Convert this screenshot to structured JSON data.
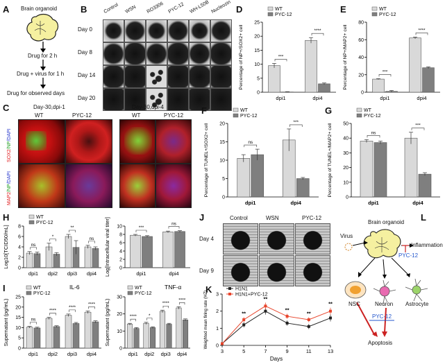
{
  "panelA": {
    "letter": "A",
    "title": "Brain organoid",
    "steps": [
      "Drug for 2 h",
      "Drug + virus for 1 h",
      "Drug for observed days"
    ]
  },
  "panelB": {
    "letter": "B",
    "columns": [
      "Control",
      "WSN",
      "RO3306",
      "PYC-12",
      "WH-L50B",
      "Nucleozin"
    ],
    "rows": [
      "Day 0",
      "Day 8",
      "Day 14",
      "Day 20"
    ]
  },
  "panelC": {
    "letter": "C",
    "group_titles": [
      "Day-30,dpi-1",
      "Day-30,dpi-4"
    ],
    "col_labels": [
      "WT",
      "PYC-12",
      "WT",
      "PYC-12"
    ],
    "row1_label": {
      "a": "SOX2",
      "b": "/NP",
      "c": "/DAPI"
    },
    "row2_label": {
      "a": "MAP2",
      "b": "/NP",
      "c": "/DAPI"
    }
  },
  "colors": {
    "wt": "#d9d9d9",
    "pyc": "#7f7f7f",
    "sig": "#333333",
    "line_h1n1": "#222222",
    "line_pyc": "#e8452c",
    "arrow_red": "#cc2222",
    "pyc_text": "#2255cc"
  },
  "legend": {
    "wt": "WT",
    "pyc": "PYC-12"
  },
  "chart_data": [
    {
      "id": "D",
      "type": "bar",
      "ylabel": "Percentage of NP+/SOX2+ cell",
      "categories": [
        "dpi1",
        "dpi4"
      ],
      "ylim": [
        0,
        25
      ],
      "yticks": [
        0,
        5,
        10,
        15,
        20,
        25
      ],
      "series": [
        {
          "name": "WT",
          "values": [
            9.5,
            18.5
          ],
          "errors": [
            0.8,
            1.0
          ]
        },
        {
          "name": "PYC-12",
          "values": [
            0.1,
            3.0
          ],
          "errors": [
            0.1,
            0.3
          ]
        }
      ],
      "sig": [
        "***",
        "****"
      ]
    },
    {
      "id": "E",
      "type": "bar",
      "ylabel": "Percentage of NP+/MAP2+ cell",
      "categories": [
        "dpi1",
        "dpi4"
      ],
      "ylim": [
        0,
        80
      ],
      "yticks": [
        0,
        20,
        40,
        60,
        80
      ],
      "series": [
        {
          "name": "WT",
          "values": [
            15,
            62
          ],
          "errors": [
            0.5,
            1.0
          ]
        },
        {
          "name": "PYC-12",
          "values": [
            1,
            28
          ],
          "errors": [
            1.0,
            1.0
          ]
        }
      ],
      "sig": [
        "***",
        "****"
      ]
    },
    {
      "id": "F",
      "type": "bar",
      "ylabel": "Percentage of TUNEL+/SOX2+ cell",
      "categories": [
        "dpi1",
        "dpi4"
      ],
      "ylim": [
        0,
        20
      ],
      "yticks": [
        0,
        5,
        10,
        15,
        20
      ],
      "series": [
        {
          "name": "WT",
          "values": [
            10.5,
            15.5
          ],
          "errors": [
            1.0,
            3.0
          ]
        },
        {
          "name": "PYC-12",
          "values": [
            11.5,
            5.0
          ],
          "errors": [
            1.5,
            0.3
          ]
        }
      ],
      "sig": [
        "ns",
        "***"
      ]
    },
    {
      "id": "G",
      "type": "bar",
      "ylabel": "Percentage of TUNEL+/MAP2+ cell",
      "categories": [
        "dpi1",
        "dpi4"
      ],
      "ylim": [
        0,
        50
      ],
      "yticks": [
        0,
        10,
        20,
        30,
        40,
        50
      ],
      "series": [
        {
          "name": "WT",
          "values": [
            38,
            40
          ],
          "errors": [
            1.0,
            4.0
          ]
        },
        {
          "name": "PYC-12",
          "values": [
            37,
            15.5
          ],
          "errors": [
            1.0,
            1.0
          ]
        }
      ],
      "sig": [
        "ns",
        "***"
      ]
    },
    {
      "id": "H1",
      "type": "bar",
      "ylabel": "Log10[TCID50/mL]",
      "categories": [
        "dpi1",
        "dpi2",
        "dpi3",
        "dpi4"
      ],
      "ylim": [
        0,
        8
      ],
      "yticks": [
        0,
        2,
        4,
        6,
        8
      ],
      "series": [
        {
          "name": "WT",
          "values": [
            2.8,
            4.0,
            6.0,
            4.0
          ],
          "errors": [
            0.3,
            0.7,
            0.4,
            0.3
          ]
        },
        {
          "name": "PYC-12",
          "values": [
            2.7,
            2.6,
            3.9,
            3.7
          ],
          "errors": [
            0.3,
            0.3,
            1.3,
            0.3
          ]
        }
      ],
      "sig": [
        "ns",
        "*",
        "**",
        "ns"
      ]
    },
    {
      "id": "H2",
      "type": "bar",
      "ylabel": "Log[Intracellular viral titer]",
      "categories": [
        "dpi1",
        "dpi4"
      ],
      "ylim": [
        0,
        10
      ],
      "yticks": [
        0,
        2,
        4,
        6,
        8,
        10
      ],
      "series": [
        {
          "name": "WT",
          "values": [
            7.8,
            8.6
          ],
          "errors": [
            0.2,
            0.2
          ]
        },
        {
          "name": "PYC-12",
          "values": [
            7.5,
            8.7
          ],
          "errors": [
            0.2,
            0.2
          ]
        }
      ],
      "sig": [
        "***",
        "ns"
      ]
    },
    {
      "id": "I1",
      "type": "bar",
      "title": "IL-6",
      "ylabel": "Supernatant (pg/mL)",
      "categories": [
        "dpi1",
        "dpi2",
        "dpi3",
        "dpi4"
      ],
      "ylim": [
        0,
        25
      ],
      "yticks": [
        0,
        5,
        10,
        15,
        20,
        25
      ],
      "series": [
        {
          "name": "WT",
          "values": [
            10.2,
            14.5,
            16.0,
            17.5
          ],
          "errors": [
            0.4,
            0.5,
            0.6,
            0.6
          ]
        },
        {
          "name": "PYC-12",
          "values": [
            9.8,
            10.5,
            12.0,
            12.8
          ],
          "errors": [
            0.4,
            0.4,
            0.5,
            0.5
          ]
        }
      ],
      "sig": [
        "ns",
        "****",
        "****",
        "****"
      ]
    },
    {
      "id": "I2",
      "type": "bar",
      "title": "TNF-α",
      "ylabel": "Supernatant (pg/mL)",
      "categories": [
        "dpi1",
        "dpi2",
        "dpi3",
        "dpi4"
      ],
      "ylim": [
        0,
        30
      ],
      "yticks": [
        0,
        10,
        20,
        30
      ],
      "series": [
        {
          "name": "WT",
          "values": [
            14.0,
            14.5,
            21.5,
            23.5
          ],
          "errors": [
            0.5,
            0.6,
            0.7,
            0.7
          ]
        },
        {
          "name": "PYC-12",
          "values": [
            11.5,
            12.0,
            14.0,
            16.5
          ],
          "errors": [
            0.5,
            0.5,
            0.5,
            0.6
          ]
        }
      ],
      "sig": [
        "****",
        "*",
        "****",
        "****"
      ]
    },
    {
      "id": "K",
      "type": "line",
      "ylabel": "Weighted mean firing rate (HZ)",
      "xlabel": "Days",
      "x": [
        3,
        5,
        7,
        9,
        11,
        13
      ],
      "ylim": [
        0,
        3
      ],
      "yticks": [
        0,
        1,
        2,
        3
      ],
      "series": [
        {
          "name": "H1N1",
          "values": [
            0.1,
            1.2,
            2.0,
            1.3,
            1.1,
            1.6
          ],
          "errors": [
            0.05,
            0.15,
            0.2,
            0.15,
            0.15,
            0.2
          ]
        },
        {
          "name": "H1N1+PYC-12",
          "values": [
            0.1,
            1.5,
            2.3,
            1.7,
            1.5,
            2.0
          ],
          "errors": [
            0.05,
            0.15,
            0.2,
            0.15,
            0.15,
            0.2
          ]
        }
      ],
      "sig_x": [
        5,
        7,
        9,
        11,
        13
      ],
      "sig": [
        "**",
        "**",
        "**",
        "**",
        "**"
      ]
    }
  ],
  "panelJ": {
    "letter": "J",
    "columns": [
      "Control",
      "WSN",
      "PYC-12"
    ],
    "rows": [
      "Day 4",
      "Day 9"
    ]
  },
  "panelL": {
    "letter": "L",
    "title": "Brain organoid",
    "virus": "Virus",
    "inflammation": "Inflammation",
    "pyc1": "PYC-12",
    "pyc2": "PYC-12",
    "nsc": "NSC",
    "neuron": "Neuron",
    "astrocyte": "Astrocyte",
    "apoptosis": "Apoptosis"
  }
}
